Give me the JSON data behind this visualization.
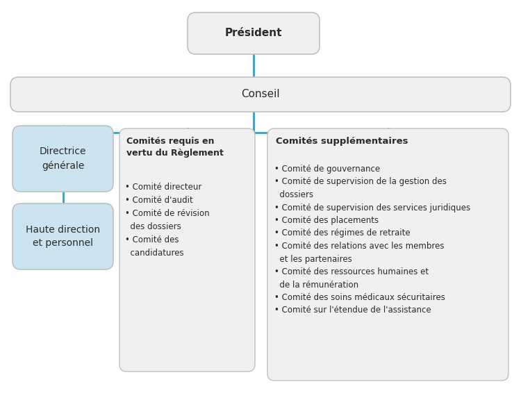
{
  "background_color": "#ffffff",
  "president_label": "Président",
  "conseil_label": "Conseil",
  "directrice_label": "Directrice\ngénérale",
  "haute_direction_label": "Haute direction\net personnel",
  "comites_requis_title": "Comités requis en\nvertu du Règlement",
  "comites_requis_items": "• Comité directeur\n• Comité d'audit\n• Comité de révision\n  des dossiers\n• Comité des\n  candidatures",
  "comites_supp_title": "Comités supplémentaires",
  "comites_supp_items": "• Comité de gouvernance\n• Comité de supervision de la gestion des\n  dossiers\n• Comité de supervision des services juridiques\n• Comité des placements\n• Comité des régimes de retraite\n• Comité des relations avec les membres\n  et les partenaires\n• Comité des ressources humaines et\n  de la rémunération\n• Comité des soins médicaux sécuritaires\n• Comité sur l'étendue de l'assistance",
  "line_color": "#3a9fc0",
  "box_fill_blue": "#cce4f0",
  "box_fill_grey": "#f0f0f0",
  "box_border_color": "#c0c0c0",
  "text_color": "#2a2a2a",
  "fig_width": 7.5,
  "fig_height": 5.76,
  "dpi": 100
}
